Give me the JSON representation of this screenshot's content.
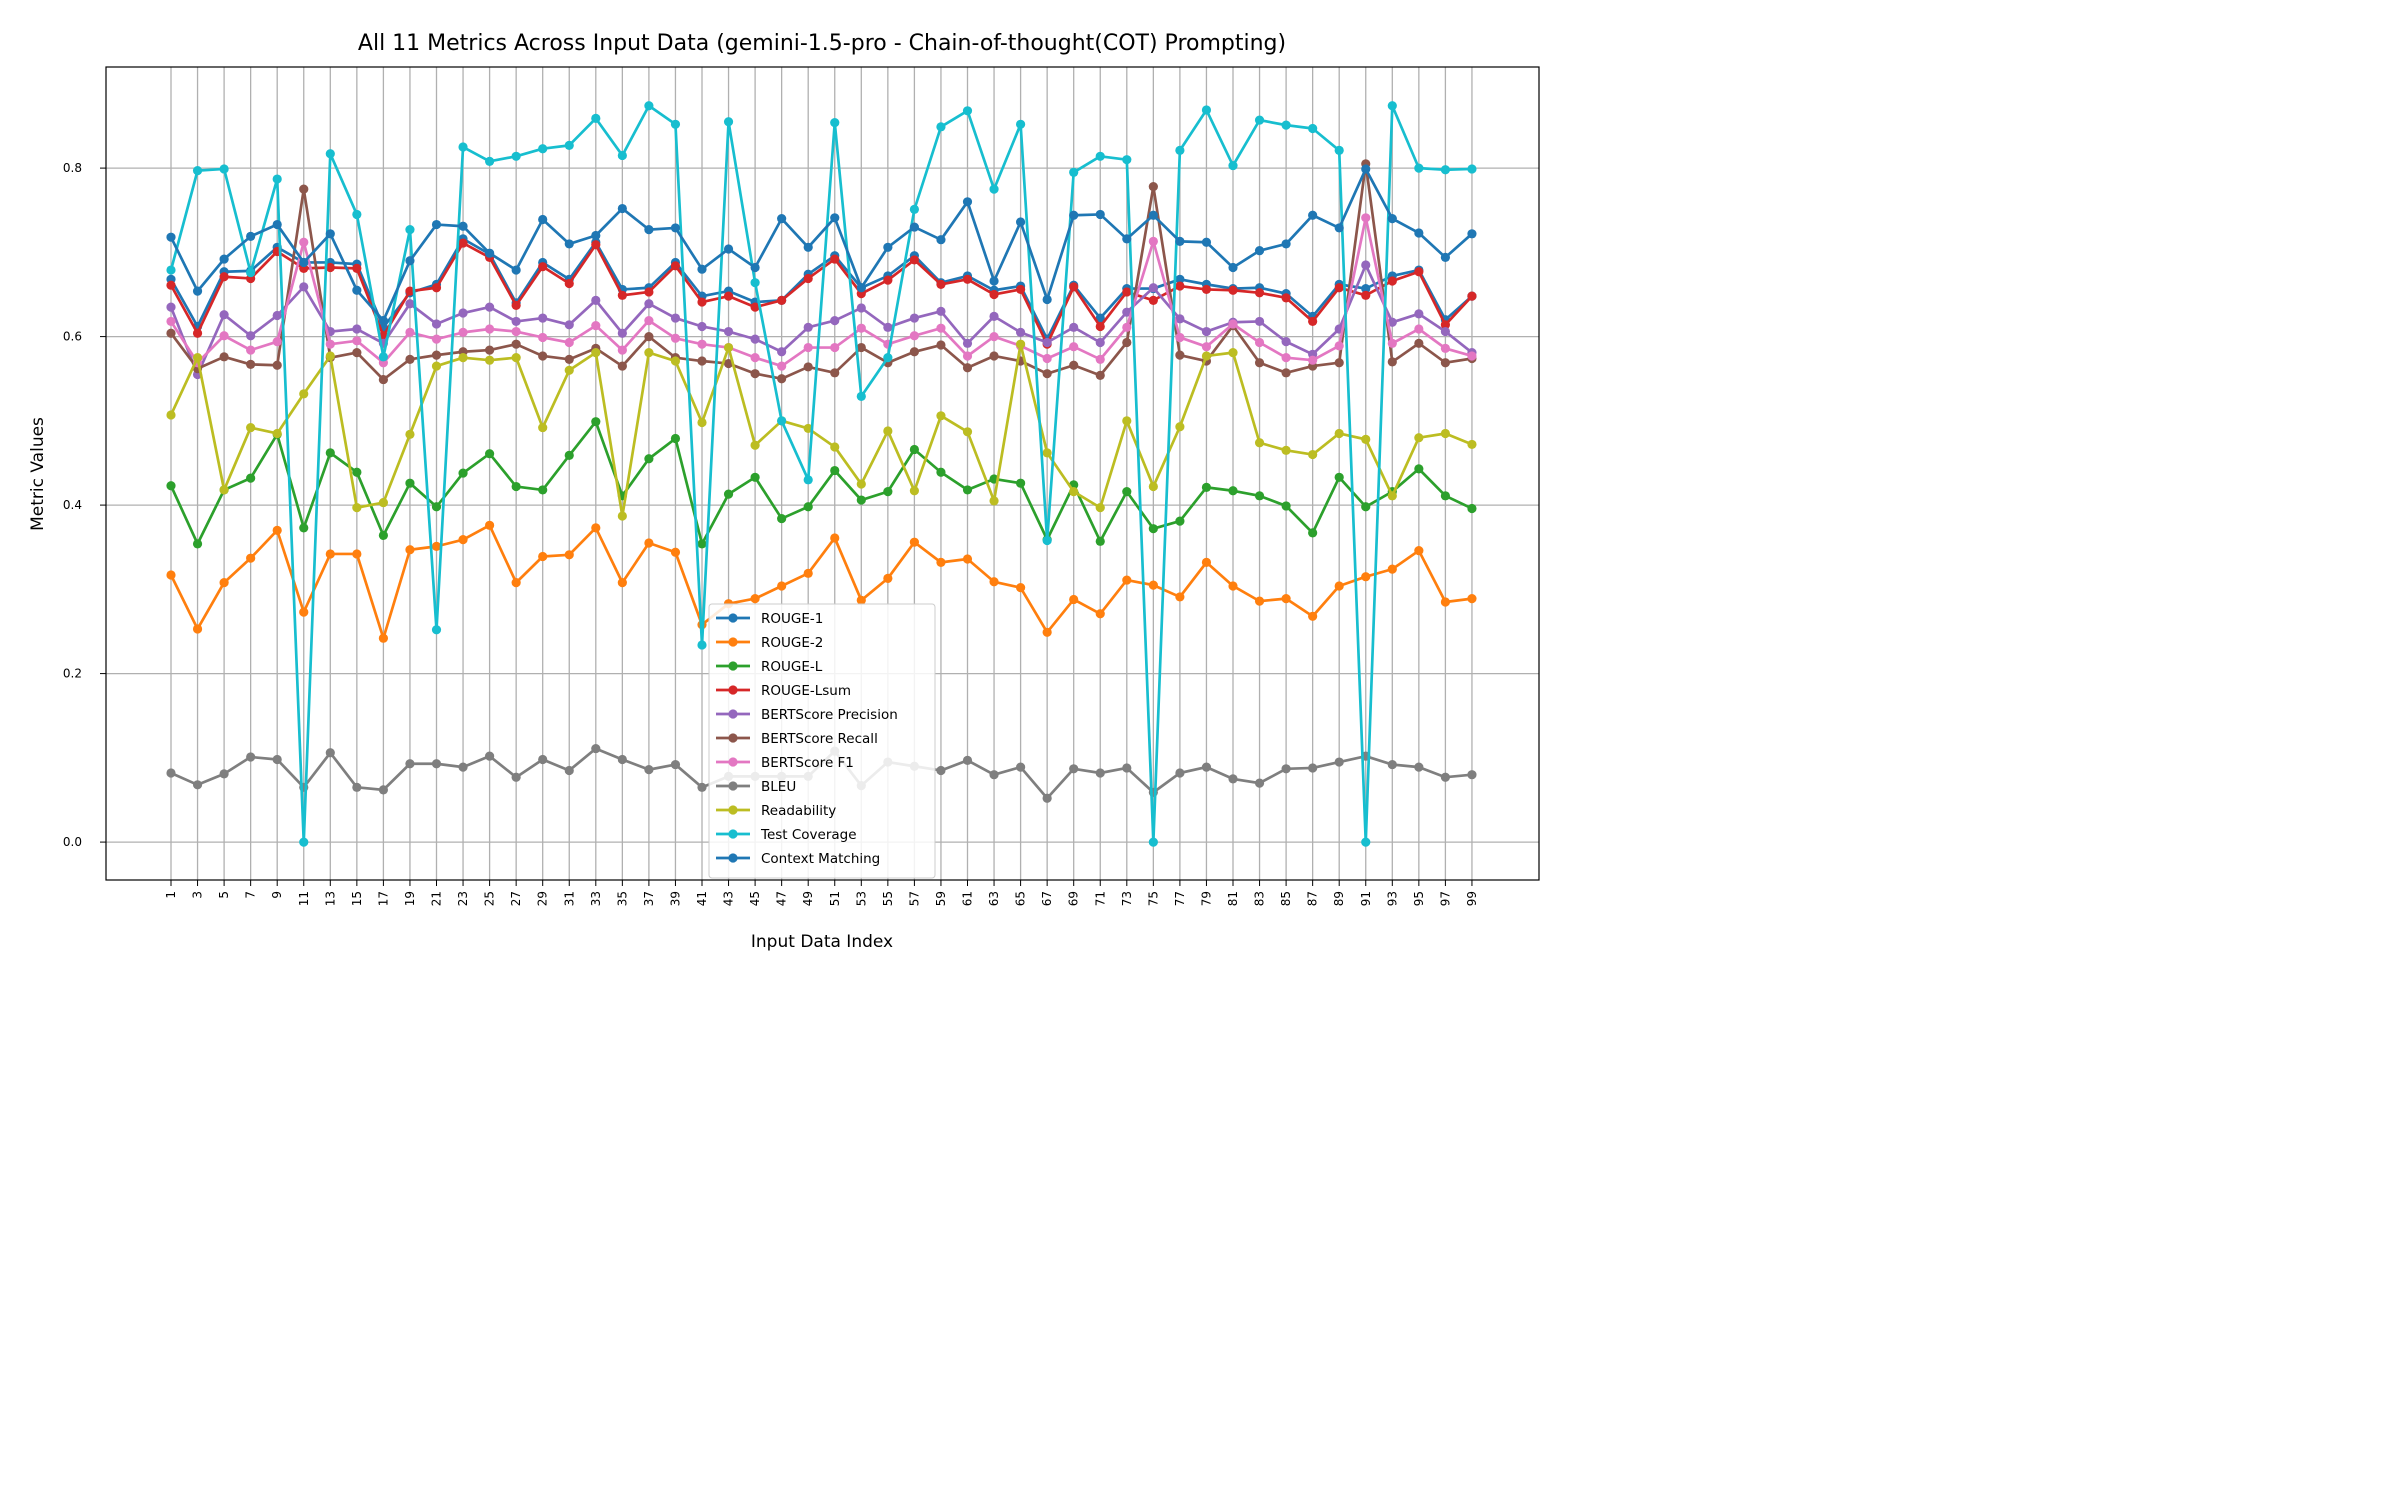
{
  "chart_data": {
    "type": "line",
    "title": "All 11 Metrics Across Input Data (gemini-1.5-pro - Chain-of-thought(COT) Prompting)",
    "xlabel": "Input Data Index",
    "ylabel": "Metric Values",
    "x": [
      1,
      3,
      5,
      7,
      9,
      11,
      13,
      15,
      17,
      19,
      21,
      23,
      25,
      27,
      29,
      31,
      33,
      35,
      37,
      39,
      41,
      43,
      45,
      47,
      49,
      51,
      53,
      55,
      57,
      59,
      61,
      63,
      65,
      67,
      69,
      71,
      73,
      75,
      77,
      79,
      81,
      83,
      85,
      87,
      89,
      91,
      93,
      95,
      97,
      99
    ],
    "yticks": [
      0.0,
      0.2,
      0.4,
      0.6,
      0.8
    ],
    "ylim": [
      -0.045,
      0.92
    ],
    "grid": true,
    "legend_position": "bottom-center",
    "series": [
      {
        "name": "ROUGE-1",
        "color": "#1f77b4",
        "values": [
          0.668,
          0.612,
          0.677,
          0.678,
          0.706,
          0.688,
          0.688,
          0.686,
          0.611,
          0.652,
          0.662,
          0.716,
          0.698,
          0.64,
          0.688,
          0.668,
          0.712,
          0.656,
          0.658,
          0.688,
          0.648,
          0.654,
          0.641,
          0.643,
          0.674,
          0.696,
          0.658,
          0.672,
          0.696,
          0.664,
          0.672,
          0.655,
          0.66,
          0.597,
          0.661,
          0.622,
          0.657,
          0.657,
          0.668,
          0.662,
          0.657,
          0.658,
          0.651,
          0.624,
          0.662,
          0.657,
          0.672,
          0.679,
          0.62,
          0.648
        ]
      },
      {
        "name": "ROUGE-2",
        "color": "#ff7f0e",
        "values": [
          0.317,
          0.253,
          0.308,
          0.337,
          0.37,
          0.273,
          0.342,
          0.342,
          0.242,
          0.347,
          0.351,
          0.359,
          0.376,
          0.308,
          0.339,
          0.341,
          0.373,
          0.308,
          0.355,
          0.344,
          0.258,
          0.283,
          0.289,
          0.304,
          0.319,
          0.361,
          0.287,
          0.313,
          0.356,
          0.332,
          0.336,
          0.309,
          0.302,
          0.249,
          0.288,
          0.271,
          0.311,
          0.305,
          0.291,
          0.332,
          0.304,
          0.286,
          0.289,
          0.268,
          0.304,
          0.315,
          0.324,
          0.346,
          0.285,
          0.289
        ]
      },
      {
        "name": "ROUGE-L",
        "color": "#2ca02c",
        "values": [
          0.423,
          0.354,
          0.418,
          0.432,
          0.484,
          0.373,
          0.462,
          0.439,
          0.364,
          0.426,
          0.398,
          0.438,
          0.461,
          0.422,
          0.418,
          0.459,
          0.499,
          0.411,
          0.455,
          0.479,
          0.354,
          0.413,
          0.433,
          0.384,
          0.398,
          0.441,
          0.406,
          0.416,
          0.466,
          0.439,
          0.418,
          0.431,
          0.426,
          0.359,
          0.424,
          0.357,
          0.416,
          0.372,
          0.381,
          0.421,
          0.417,
          0.411,
          0.399,
          0.367,
          0.433,
          0.398,
          0.416,
          0.443,
          0.411,
          0.396
        ]
      },
      {
        "name": "ROUGE-Lsum",
        "color": "#d62728",
        "values": [
          0.661,
          0.604,
          0.671,
          0.669,
          0.701,
          0.681,
          0.682,
          0.681,
          0.601,
          0.654,
          0.658,
          0.711,
          0.694,
          0.637,
          0.683,
          0.663,
          0.709,
          0.649,
          0.653,
          0.684,
          0.641,
          0.648,
          0.635,
          0.643,
          0.669,
          0.692,
          0.651,
          0.667,
          0.691,
          0.662,
          0.668,
          0.65,
          0.656,
          0.591,
          0.659,
          0.612,
          0.653,
          0.643,
          0.66,
          0.656,
          0.655,
          0.652,
          0.646,
          0.618,
          0.658,
          0.649,
          0.666,
          0.677,
          0.614,
          0.648
        ]
      },
      {
        "name": "BERTScore Precision",
        "color": "#9467bd",
        "values": [
          0.635,
          0.555,
          0.626,
          0.601,
          0.625,
          0.659,
          0.606,
          0.609,
          0.592,
          0.639,
          0.615,
          0.628,
          0.635,
          0.618,
          0.622,
          0.614,
          0.643,
          0.604,
          0.639,
          0.622,
          0.612,
          0.606,
          0.597,
          0.582,
          0.611,
          0.619,
          0.634,
          0.611,
          0.622,
          0.63,
          0.592,
          0.624,
          0.605,
          0.593,
          0.611,
          0.593,
          0.629,
          0.658,
          0.621,
          0.606,
          0.617,
          0.618,
          0.594,
          0.579,
          0.609,
          0.685,
          0.617,
          0.627,
          0.606,
          0.581
        ]
      },
      {
        "name": "BERTScore Recall",
        "color": "#8c564b",
        "values": [
          0.604,
          0.562,
          0.576,
          0.567,
          0.566,
          0.775,
          0.575,
          0.581,
          0.549,
          0.573,
          0.578,
          0.582,
          0.584,
          0.591,
          0.577,
          0.573,
          0.586,
          0.565,
          0.6,
          0.575,
          0.571,
          0.568,
          0.556,
          0.55,
          0.564,
          0.557,
          0.587,
          0.569,
          0.582,
          0.59,
          0.563,
          0.577,
          0.571,
          0.556,
          0.566,
          0.554,
          0.593,
          0.778,
          0.578,
          0.571,
          0.613,
          0.569,
          0.557,
          0.565,
          0.569,
          0.805,
          0.57,
          0.592,
          0.569,
          0.574
        ]
      },
      {
        "name": "BERTScore F1",
        "color": "#e377c2",
        "values": [
          0.618,
          0.569,
          0.601,
          0.584,
          0.594,
          0.712,
          0.591,
          0.595,
          0.569,
          0.605,
          0.597,
          0.605,
          0.609,
          0.606,
          0.599,
          0.593,
          0.613,
          0.584,
          0.619,
          0.598,
          0.591,
          0.587,
          0.575,
          0.565,
          0.587,
          0.587,
          0.61,
          0.591,
          0.601,
          0.61,
          0.577,
          0.6,
          0.589,
          0.574,
          0.588,
          0.573,
          0.611,
          0.713,
          0.599,
          0.588,
          0.615,
          0.593,
          0.575,
          0.572,
          0.589,
          0.741,
          0.592,
          0.609,
          0.586,
          0.577
        ]
      },
      {
        "name": "BLEU",
        "color": "#7f7f7f",
        "values": [
          0.082,
          0.068,
          0.081,
          0.101,
          0.098,
          0.065,
          0.106,
          0.065,
          0.062,
          0.093,
          0.093,
          0.089,
          0.102,
          0.077,
          0.098,
          0.085,
          0.111,
          0.098,
          0.086,
          0.092,
          0.065,
          0.078,
          0.078,
          0.078,
          0.078,
          0.108,
          0.067,
          0.095,
          0.09,
          0.085,
          0.097,
          0.08,
          0.089,
          0.052,
          0.087,
          0.082,
          0.088,
          0.059,
          0.082,
          0.089,
          0.075,
          0.07,
          0.087,
          0.088,
          0.095,
          0.102,
          0.092,
          0.089,
          0.077,
          0.08
        ]
      },
      {
        "name": "Readability",
        "color": "#bcbd22",
        "values": [
          0.507,
          0.575,
          0.418,
          0.492,
          0.485,
          0.532,
          0.577,
          0.397,
          0.403,
          0.484,
          0.565,
          0.575,
          0.572,
          0.575,
          0.492,
          0.56,
          0.581,
          0.387,
          0.581,
          0.571,
          0.498,
          0.587,
          0.471,
          0.5,
          0.491,
          0.469,
          0.425,
          0.488,
          0.417,
          0.506,
          0.487,
          0.405,
          0.591,
          0.462,
          0.416,
          0.397,
          0.5,
          0.422,
          0.493,
          0.577,
          0.581,
          0.474,
          0.465,
          0.46,
          0.485,
          0.478,
          0.411,
          0.48,
          0.485,
          0.472
        ]
      },
      {
        "name": "Test Coverage",
        "color": "#17becf",
        "values": [
          0.679,
          0.797,
          0.799,
          0.676,
          0.787,
          0.0,
          0.817,
          0.745,
          0.576,
          0.727,
          0.252,
          0.825,
          0.808,
          0.814,
          0.823,
          0.827,
          0.859,
          0.815,
          0.874,
          0.852,
          0.234,
          0.855,
          0.664,
          0.5,
          0.43,
          0.854,
          0.529,
          0.575,
          0.751,
          0.849,
          0.868,
          0.775,
          0.852,
          0.358,
          0.795,
          0.814,
          0.81,
          0.0,
          0.821,
          0.869,
          0.803,
          0.857,
          0.851,
          0.847,
          0.821,
          0.0,
          0.874,
          0.8,
          0.798,
          0.799
        ]
      },
      {
        "name": "Context Matching",
        "color": "#1f77b4",
        "values": [
          0.718,
          0.654,
          0.692,
          0.719,
          0.733,
          0.688,
          0.722,
          0.655,
          0.619,
          0.69,
          0.733,
          0.731,
          0.699,
          0.679,
          0.739,
          0.71,
          0.72,
          0.752,
          0.727,
          0.729,
          0.68,
          0.704,
          0.682,
          0.74,
          0.706,
          0.741,
          0.658,
          0.706,
          0.73,
          0.715,
          0.76,
          0.666,
          0.736,
          0.644,
          0.744,
          0.745,
          0.716,
          0.744,
          0.713,
          0.712,
          0.682,
          0.702,
          0.71,
          0.744,
          0.729,
          0.799,
          0.74,
          0.723,
          0.694,
          0.722
        ]
      }
    ]
  }
}
